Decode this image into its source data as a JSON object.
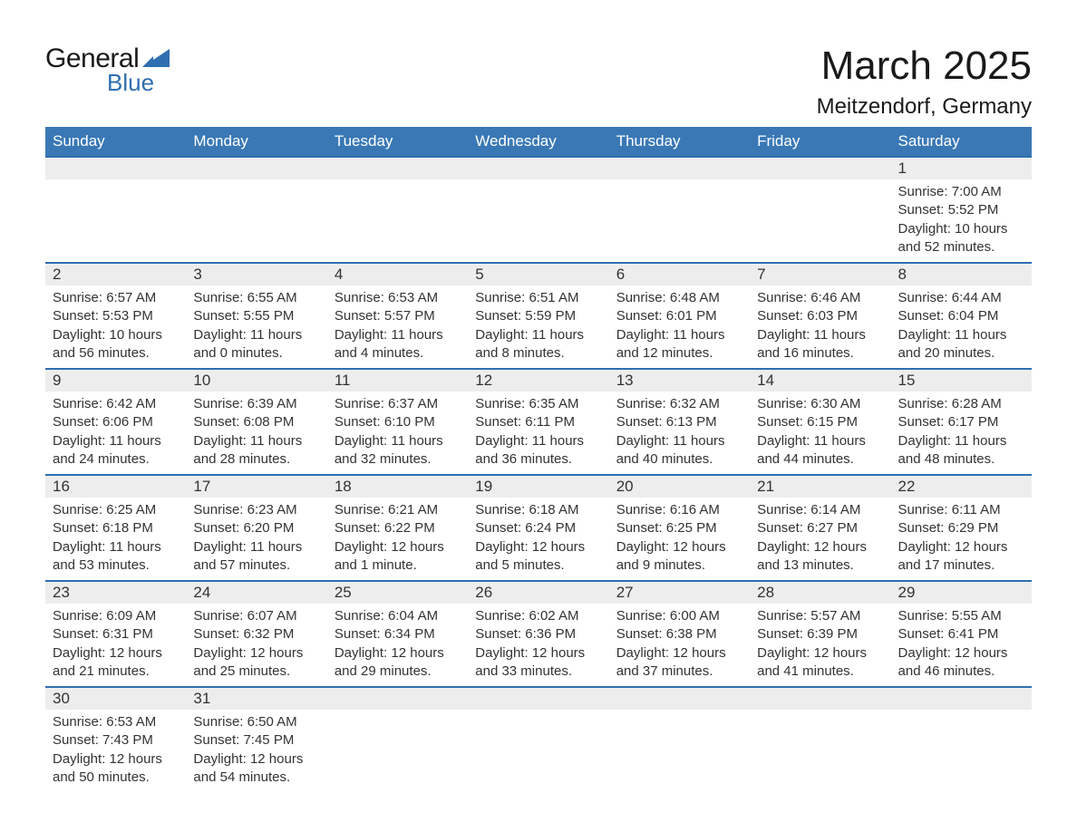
{
  "brand": {
    "name_general": "General",
    "name_blue": "Blue",
    "accent_color": "#2e6fb0"
  },
  "title": "March 2025",
  "location": "Meitzendorf, Germany",
  "colors": {
    "header_bg": "#3a78b5",
    "header_text": "#ffffff",
    "daynum_bg": "#ededed",
    "row_divider": "#2e6fb0",
    "body_text": "#333333",
    "page_bg": "#ffffff"
  },
  "day_headers": [
    "Sunday",
    "Monday",
    "Tuesday",
    "Wednesday",
    "Thursday",
    "Friday",
    "Saturday"
  ],
  "weeks": [
    [
      null,
      null,
      null,
      null,
      null,
      null,
      {
        "n": "1",
        "sr": "7:00 AM",
        "ss": "5:52 PM",
        "dl": "10 hours and 52 minutes."
      }
    ],
    [
      {
        "n": "2",
        "sr": "6:57 AM",
        "ss": "5:53 PM",
        "dl": "10 hours and 56 minutes."
      },
      {
        "n": "3",
        "sr": "6:55 AM",
        "ss": "5:55 PM",
        "dl": "11 hours and 0 minutes."
      },
      {
        "n": "4",
        "sr": "6:53 AM",
        "ss": "5:57 PM",
        "dl": "11 hours and 4 minutes."
      },
      {
        "n": "5",
        "sr": "6:51 AM",
        "ss": "5:59 PM",
        "dl": "11 hours and 8 minutes."
      },
      {
        "n": "6",
        "sr": "6:48 AM",
        "ss": "6:01 PM",
        "dl": "11 hours and 12 minutes."
      },
      {
        "n": "7",
        "sr": "6:46 AM",
        "ss": "6:03 PM",
        "dl": "11 hours and 16 minutes."
      },
      {
        "n": "8",
        "sr": "6:44 AM",
        "ss": "6:04 PM",
        "dl": "11 hours and 20 minutes."
      }
    ],
    [
      {
        "n": "9",
        "sr": "6:42 AM",
        "ss": "6:06 PM",
        "dl": "11 hours and 24 minutes."
      },
      {
        "n": "10",
        "sr": "6:39 AM",
        "ss": "6:08 PM",
        "dl": "11 hours and 28 minutes."
      },
      {
        "n": "11",
        "sr": "6:37 AM",
        "ss": "6:10 PM",
        "dl": "11 hours and 32 minutes."
      },
      {
        "n": "12",
        "sr": "6:35 AM",
        "ss": "6:11 PM",
        "dl": "11 hours and 36 minutes."
      },
      {
        "n": "13",
        "sr": "6:32 AM",
        "ss": "6:13 PM",
        "dl": "11 hours and 40 minutes."
      },
      {
        "n": "14",
        "sr": "6:30 AM",
        "ss": "6:15 PM",
        "dl": "11 hours and 44 minutes."
      },
      {
        "n": "15",
        "sr": "6:28 AM",
        "ss": "6:17 PM",
        "dl": "11 hours and 48 minutes."
      }
    ],
    [
      {
        "n": "16",
        "sr": "6:25 AM",
        "ss": "6:18 PM",
        "dl": "11 hours and 53 minutes."
      },
      {
        "n": "17",
        "sr": "6:23 AM",
        "ss": "6:20 PM",
        "dl": "11 hours and 57 minutes."
      },
      {
        "n": "18",
        "sr": "6:21 AM",
        "ss": "6:22 PM",
        "dl": "12 hours and 1 minute."
      },
      {
        "n": "19",
        "sr": "6:18 AM",
        "ss": "6:24 PM",
        "dl": "12 hours and 5 minutes."
      },
      {
        "n": "20",
        "sr": "6:16 AM",
        "ss": "6:25 PM",
        "dl": "12 hours and 9 minutes."
      },
      {
        "n": "21",
        "sr": "6:14 AM",
        "ss": "6:27 PM",
        "dl": "12 hours and 13 minutes."
      },
      {
        "n": "22",
        "sr": "6:11 AM",
        "ss": "6:29 PM",
        "dl": "12 hours and 17 minutes."
      }
    ],
    [
      {
        "n": "23",
        "sr": "6:09 AM",
        "ss": "6:31 PM",
        "dl": "12 hours and 21 minutes."
      },
      {
        "n": "24",
        "sr": "6:07 AM",
        "ss": "6:32 PM",
        "dl": "12 hours and 25 minutes."
      },
      {
        "n": "25",
        "sr": "6:04 AM",
        "ss": "6:34 PM",
        "dl": "12 hours and 29 minutes."
      },
      {
        "n": "26",
        "sr": "6:02 AM",
        "ss": "6:36 PM",
        "dl": "12 hours and 33 minutes."
      },
      {
        "n": "27",
        "sr": "6:00 AM",
        "ss": "6:38 PM",
        "dl": "12 hours and 37 minutes."
      },
      {
        "n": "28",
        "sr": "5:57 AM",
        "ss": "6:39 PM",
        "dl": "12 hours and 41 minutes."
      },
      {
        "n": "29",
        "sr": "5:55 AM",
        "ss": "6:41 PM",
        "dl": "12 hours and 46 minutes."
      }
    ],
    [
      {
        "n": "30",
        "sr": "6:53 AM",
        "ss": "7:43 PM",
        "dl": "12 hours and 50 minutes."
      },
      {
        "n": "31",
        "sr": "6:50 AM",
        "ss": "7:45 PM",
        "dl": "12 hours and 54 minutes."
      },
      null,
      null,
      null,
      null,
      null
    ]
  ],
  "labels": {
    "sunrise": "Sunrise: ",
    "sunset": "Sunset: ",
    "daylight": "Daylight: "
  }
}
